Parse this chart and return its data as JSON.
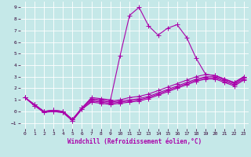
{
  "title": "",
  "xlabel": "Windchill (Refroidissement éolien,°C)",
  "ylabel": "",
  "xlim": [
    -0.5,
    23.5
  ],
  "ylim": [
    -1.5,
    9.5
  ],
  "yticks": [
    -1,
    0,
    1,
    2,
    3,
    4,
    5,
    6,
    7,
    8,
    9
  ],
  "xticks": [
    0,
    1,
    2,
    3,
    4,
    5,
    6,
    7,
    8,
    9,
    10,
    11,
    12,
    13,
    14,
    15,
    16,
    17,
    18,
    19,
    20,
    21,
    22,
    23
  ],
  "background_color": "#c5e8e8",
  "grid_color": "#ffffff",
  "line_color": "#aa00aa",
  "lines": [
    {
      "x": [
        0,
        1,
        2,
        3,
        4,
        5,
        6,
        7,
        8,
        9,
        10,
        11,
        12,
        13,
        14,
        15,
        16,
        17,
        18,
        19,
        20,
        21,
        22,
        23
      ],
      "y": [
        1.2,
        0.6,
        0.0,
        0.1,
        0.0,
        -0.7,
        0.3,
        1.2,
        1.1,
        1.0,
        4.8,
        8.3,
        9.0,
        7.4,
        6.6,
        7.2,
        7.5,
        6.4,
        4.6,
        3.2,
        3.1,
        2.8,
        2.5,
        3.0
      ]
    },
    {
      "x": [
        0,
        1,
        2,
        3,
        4,
        5,
        6,
        7,
        8,
        9,
        10,
        11,
        12,
        13,
        14,
        15,
        16,
        17,
        18,
        19,
        20,
        21,
        22,
        23
      ],
      "y": [
        1.2,
        0.6,
        0.0,
        0.1,
        0.0,
        -0.7,
        0.3,
        1.1,
        1.0,
        0.9,
        1.0,
        1.2,
        1.3,
        1.5,
        1.8,
        2.1,
        2.4,
        2.7,
        3.0,
        3.2,
        3.1,
        2.8,
        2.5,
        3.0
      ]
    },
    {
      "x": [
        0,
        1,
        2,
        3,
        4,
        5,
        6,
        7,
        8,
        9,
        10,
        11,
        12,
        13,
        14,
        15,
        16,
        17,
        18,
        19,
        20,
        21,
        22,
        23
      ],
      "y": [
        1.2,
        0.6,
        0.0,
        0.1,
        0.0,
        -0.7,
        0.3,
        1.0,
        0.9,
        0.8,
        0.9,
        1.0,
        1.1,
        1.3,
        1.6,
        1.9,
        2.2,
        2.5,
        2.8,
        3.0,
        3.0,
        2.7,
        2.4,
        2.9
      ]
    },
    {
      "x": [
        0,
        1,
        2,
        3,
        4,
        5,
        6,
        7,
        8,
        9,
        10,
        11,
        12,
        13,
        14,
        15,
        16,
        17,
        18,
        19,
        20,
        21,
        22,
        23
      ],
      "y": [
        1.2,
        0.5,
        0.0,
        0.0,
        -0.1,
        -0.8,
        0.2,
        0.9,
        0.8,
        0.7,
        0.8,
        0.9,
        1.0,
        1.2,
        1.5,
        1.8,
        2.1,
        2.4,
        2.7,
        2.9,
        2.9,
        2.6,
        2.3,
        2.8
      ]
    },
    {
      "x": [
        0,
        1,
        2,
        3,
        4,
        5,
        6,
        7,
        8,
        9,
        10,
        11,
        12,
        13,
        14,
        15,
        16,
        17,
        18,
        19,
        20,
        21,
        22,
        23
      ],
      "y": [
        1.2,
        0.5,
        -0.1,
        0.0,
        -0.1,
        -0.8,
        0.2,
        0.8,
        0.7,
        0.6,
        0.7,
        0.8,
        0.9,
        1.1,
        1.4,
        1.7,
        2.0,
        2.3,
        2.6,
        2.8,
        2.8,
        2.5,
        2.2,
        2.7
      ]
    }
  ],
  "marker": "+",
  "markersize": 4,
  "linewidth": 0.8,
  "tick_fontsize": 4.5,
  "label_fontsize": 5.5
}
